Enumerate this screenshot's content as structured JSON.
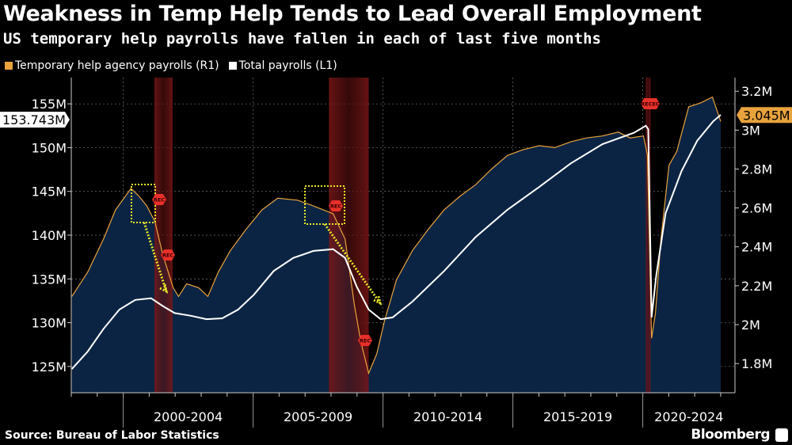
{
  "header": {
    "title": "Weakness in Temp Help Tends to Lead Overall Employment",
    "subtitle": "US temporary help payrolls have fallen in each of last five months"
  },
  "footer": {
    "source": "Source: Bureau of Labor Statistics",
    "brand": "Bloomberg"
  },
  "chart_data": {
    "type": "line",
    "title": "Weakness in Temp Help Tends to Lead Overall Employment",
    "subtitle": "US temporary help payrolls have fallen in each of last five months",
    "x_tick_labels": [
      "2000-2004",
      "2005-2009",
      "2010-2014",
      "2015-2019",
      "2020-2024"
    ],
    "xlim": [
      1998.0,
      2023.55
    ],
    "left_axis": {
      "ticks": [
        125,
        130,
        135,
        140,
        145,
        150,
        155
      ],
      "tick_labels": [
        "125M",
        "130M",
        "135M",
        "140M",
        "145M",
        "150M",
        "155M"
      ],
      "ylim": [
        122,
        158
      ]
    },
    "right_axis": {
      "ticks": [
        1.8,
        2.0,
        2.2,
        2.4,
        2.6,
        2.8,
        3.0,
        3.2
      ],
      "tick_labels": [
        "1.8M",
        "2M",
        "2.2M",
        "2.4M",
        "2.6M",
        "2.8M",
        "3M",
        "3.2M"
      ],
      "ylim": [
        1.65,
        3.27
      ]
    },
    "grid": true,
    "legend_placement": "top-left",
    "colors": {
      "temp": "#e8a33d",
      "total": "#ffffff",
      "area": "#0c2443",
      "recession": "#8a1a1a",
      "annotation": "#e6e62a",
      "rec_marker": "#e8302a"
    },
    "series": [
      {
        "name": "Temporary help agency payrolls (R1)",
        "axis": "right",
        "type": "area",
        "color": "#e8a33d",
        "x": [
          1998.02,
          1998.63,
          1999.24,
          1999.7,
          2000.3,
          2000.61,
          2000.91,
          2001.22,
          2001.52,
          2001.92,
          2002.13,
          2002.44,
          2002.9,
          2003.26,
          2003.66,
          2004.12,
          2004.73,
          2005.34,
          2005.95,
          2006.71,
          2007.32,
          2008.08,
          2008.54,
          2008.9,
          2009.15,
          2009.45,
          2009.76,
          2010.06,
          2010.52,
          2011.13,
          2011.74,
          2012.35,
          2012.96,
          2013.57,
          2014.18,
          2014.79,
          2015.4,
          2016.01,
          2016.62,
          2017.23,
          2017.84,
          2018.45,
          2019.06,
          2019.51,
          2020.03,
          2020.18,
          2020.34,
          2020.49,
          2020.7,
          2021.01,
          2021.31,
          2021.77,
          2022.23,
          2022.68,
          2023.0
        ],
        "values": [
          2.145,
          2.27,
          2.44,
          2.59,
          2.7,
          2.66,
          2.61,
          2.53,
          2.36,
          2.19,
          2.145,
          2.21,
          2.19,
          2.145,
          2.27,
          2.38,
          2.49,
          2.59,
          2.65,
          2.64,
          2.61,
          2.57,
          2.44,
          2.1,
          1.91,
          1.75,
          1.85,
          2.02,
          2.23,
          2.38,
          2.49,
          2.59,
          2.66,
          2.72,
          2.8,
          2.87,
          2.9,
          2.92,
          2.91,
          2.94,
          2.96,
          2.97,
          2.99,
          2.96,
          2.97,
          2.87,
          1.93,
          2.06,
          2.44,
          2.82,
          2.89,
          3.12,
          3.14,
          3.17,
          3.045
        ],
        "last_value_label": "3.045M"
      },
      {
        "name": "Total payrolls (L1)",
        "axis": "left",
        "type": "line",
        "color": "#ffffff",
        "x": [
          1998.02,
          1998.63,
          1999.24,
          1999.85,
          2000.46,
          2001.07,
          2001.52,
          2001.98,
          2002.59,
          2003.2,
          2003.81,
          2004.42,
          2005.03,
          2005.79,
          2006.55,
          2007.32,
          2008.08,
          2008.54,
          2008.99,
          2009.45,
          2009.91,
          2010.37,
          2011.13,
          2012.35,
          2013.57,
          2014.79,
          2016.01,
          2017.23,
          2018.45,
          2019.66,
          2020.12,
          2020.21,
          2020.34,
          2020.52,
          2020.88,
          2021.49,
          2022.1,
          2022.71,
          2023.0
        ],
        "values": [
          124.7,
          126.7,
          129.3,
          131.5,
          132.6,
          132.8,
          131.9,
          131.1,
          130.8,
          130.4,
          130.5,
          131.5,
          133.2,
          135.9,
          137.4,
          138.2,
          138.4,
          137.4,
          134.1,
          131.5,
          130.4,
          130.6,
          132.4,
          135.9,
          139.8,
          142.9,
          145.5,
          148.2,
          150.4,
          151.7,
          152.5,
          152.1,
          130.6,
          135.4,
          142.5,
          147.3,
          150.8,
          153.0,
          153.743
        ],
        "last_value_label": "153.743M"
      }
    ],
    "recessions": [
      [
        2001.2,
        2001.9
      ],
      [
        2007.92,
        2009.45
      ],
      [
        2020.12,
        2020.3
      ]
    ],
    "annotations": {
      "rec_label": "REC",
      "rec_label_2020": "RECEC"
    }
  }
}
